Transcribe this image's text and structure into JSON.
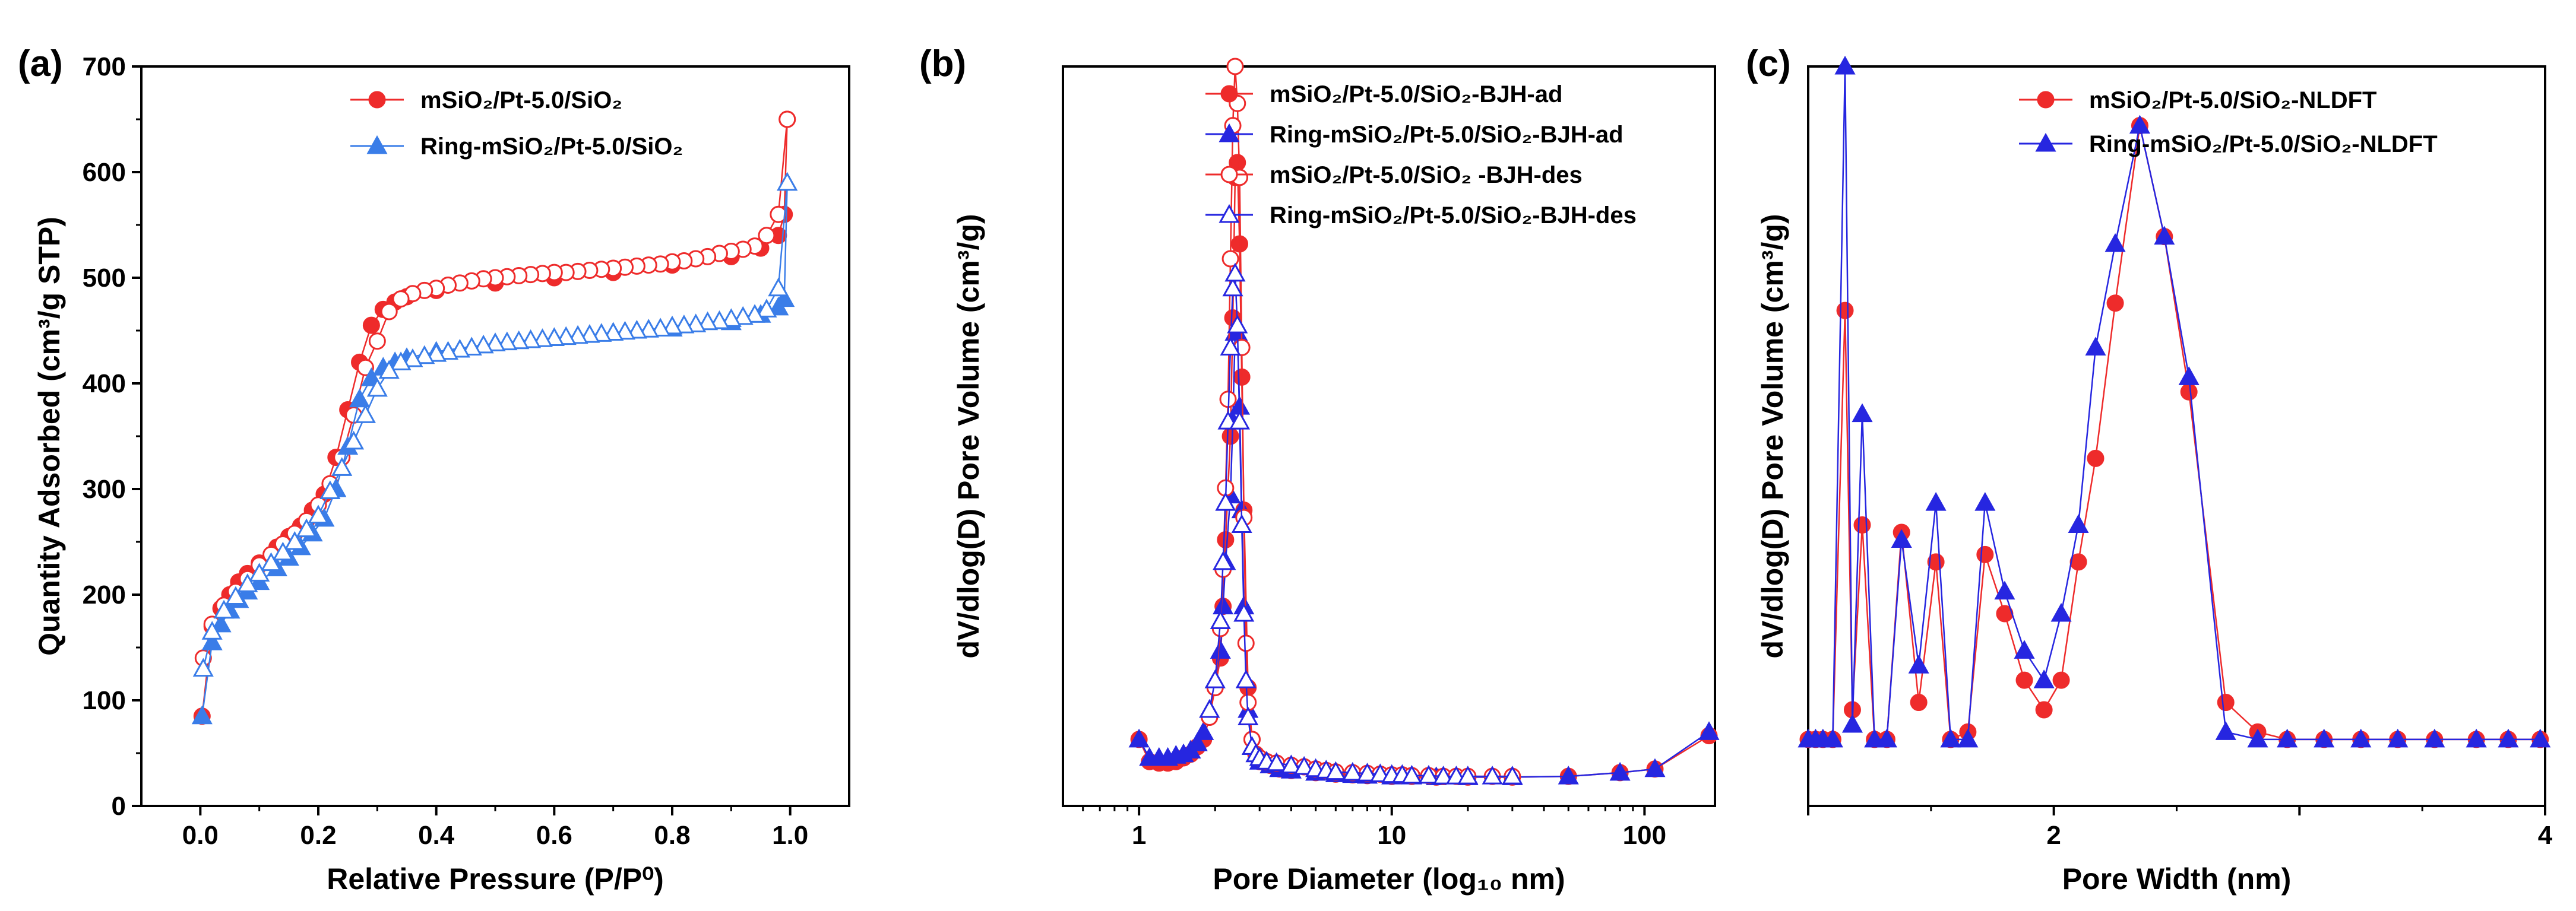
{
  "figure": {
    "background": "#ffffff"
  },
  "colors": {
    "red": "#ee2b2b",
    "blue": "#2626e0",
    "blue_light": "#3a7de8"
  },
  "chart_data": [
    {
      "id": "a",
      "panel_label": "(a)",
      "type": "scatter",
      "xlabel": "Relative Pressure (P/P⁰)",
      "ylabel": "Quantity Adsorbed (cm³/g STP)",
      "xlim": [
        -0.1,
        1.1
      ],
      "ylim": [
        0,
        700
      ],
      "xticks": [
        0.0,
        0.2,
        0.4,
        0.6,
        0.8,
        1.0
      ],
      "xtick_labels": [
        "0.0",
        "0.2",
        "0.4",
        "0.6",
        "0.8",
        "1.0"
      ],
      "yticks": [
        0,
        100,
        200,
        300,
        400,
        500,
        600,
        700
      ],
      "ytick_labels": [
        "0",
        "100",
        "200",
        "300",
        "400",
        "500",
        "600",
        "700"
      ],
      "legend_position": "top-center",
      "series": [
        {
          "name": "mSiO2/Pt-5.0/SiO2",
          "legend_label": "mSiO₂/Pt-5.0/SiO₂",
          "color": "#ee2b2b",
          "marker": "circle",
          "fill": "filled",
          "x": [
            0.003,
            0.02,
            0.035,
            0.05,
            0.065,
            0.08,
            0.1,
            0.13,
            0.15,
            0.17,
            0.19,
            0.21,
            0.23,
            0.25,
            0.27,
            0.29,
            0.31,
            0.33,
            0.35,
            0.4,
            0.5,
            0.6,
            0.7,
            0.8,
            0.9,
            0.95,
            0.98,
            0.99,
            0.995
          ],
          "y": [
            85,
            170,
            187,
            200,
            212,
            220,
            230,
            245,
            255,
            265,
            280,
            295,
            330,
            375,
            420,
            455,
            470,
            477,
            482,
            488,
            495,
            500,
            505,
            512,
            520,
            528,
            540,
            560,
            650
          ]
        },
        {
          "name": "mSiO2/Pt-5.0/SiO2 (desorption)",
          "color": "#ee2b2b",
          "marker": "circle",
          "fill": "hollow",
          "x": [
            0.995,
            0.98,
            0.96,
            0.94,
            0.92,
            0.9,
            0.88,
            0.86,
            0.84,
            0.82,
            0.8,
            0.78,
            0.76,
            0.74,
            0.72,
            0.7,
            0.68,
            0.66,
            0.64,
            0.62,
            0.6,
            0.58,
            0.56,
            0.54,
            0.52,
            0.5,
            0.48,
            0.46,
            0.44,
            0.42,
            0.4,
            0.38,
            0.36,
            0.34,
            0.32,
            0.3,
            0.28,
            0.26,
            0.24,
            0.22,
            0.2,
            0.18,
            0.16,
            0.14,
            0.12,
            0.1,
            0.08,
            0.06,
            0.04,
            0.02,
            0.005
          ],
          "y": [
            650,
            560,
            540,
            530,
            527,
            525,
            523,
            520,
            518,
            516,
            515,
            513,
            512,
            511,
            510,
            509,
            508,
            507,
            506,
            505,
            505,
            504,
            503,
            502,
            501,
            500,
            499,
            497,
            495,
            493,
            490,
            488,
            485,
            480,
            468,
            440,
            415,
            370,
            330,
            305,
            285,
            270,
            258,
            248,
            238,
            228,
            215,
            203,
            190,
            172,
            140
          ]
        },
        {
          "name": "Ring-mSiO2/Pt-5.0/SiO2",
          "legend_label": "Ring-mSiO₂/Pt-5.0/SiO₂",
          "color": "#3a7de8",
          "marker": "triangle",
          "fill": "filled",
          "x": [
            0.003,
            0.02,
            0.035,
            0.05,
            0.065,
            0.08,
            0.1,
            0.13,
            0.15,
            0.17,
            0.19,
            0.21,
            0.23,
            0.25,
            0.27,
            0.29,
            0.31,
            0.33,
            0.35,
            0.4,
            0.5,
            0.6,
            0.7,
            0.8,
            0.9,
            0.95,
            0.98,
            0.99,
            0.995
          ],
          "y": [
            85,
            155,
            172,
            185,
            195,
            203,
            212,
            225,
            235,
            245,
            258,
            272,
            300,
            340,
            385,
            405,
            415,
            420,
            424,
            430,
            438,
            443,
            448,
            452,
            458,
            465,
            472,
            480,
            590
          ]
        },
        {
          "name": "Ring-mSiO2/Pt-5.0/SiO2 (desorption)",
          "color": "#3a7de8",
          "marker": "triangle",
          "fill": "hollow",
          "x": [
            0.995,
            0.98,
            0.96,
            0.94,
            0.92,
            0.9,
            0.88,
            0.86,
            0.84,
            0.82,
            0.8,
            0.78,
            0.76,
            0.74,
            0.72,
            0.7,
            0.68,
            0.66,
            0.64,
            0.62,
            0.6,
            0.58,
            0.56,
            0.54,
            0.52,
            0.5,
            0.48,
            0.46,
            0.44,
            0.42,
            0.4,
            0.38,
            0.36,
            0.34,
            0.32,
            0.3,
            0.28,
            0.26,
            0.24,
            0.22,
            0.2,
            0.18,
            0.16,
            0.14,
            0.12,
            0.1,
            0.08,
            0.06,
            0.04,
            0.02,
            0.005
          ],
          "y": [
            590,
            490,
            470,
            465,
            463,
            461,
            459,
            458,
            456,
            455,
            454,
            452,
            451,
            450,
            449,
            448,
            447,
            446,
            445,
            444,
            443,
            442,
            441,
            440,
            439,
            438,
            436,
            434,
            432,
            430,
            428,
            426,
            423,
            420,
            412,
            395,
            370,
            345,
            320,
            298,
            275,
            262,
            250,
            240,
            230,
            220,
            210,
            198,
            185,
            165,
            130
          ]
        }
      ]
    },
    {
      "id": "b",
      "panel_label": "(b)",
      "type": "line",
      "xscale": "log",
      "xlabel": "Pore Diameter (log₁₀ nm)",
      "ylabel": "dV/dlog(D) Pore Volume (cm³/g)",
      "xlim": [
        0.5,
        190
      ],
      "ylim": [
        0,
        1
      ],
      "xticks": [
        1,
        10,
        100
      ],
      "xtick_labels": [
        "1",
        "10",
        "100"
      ],
      "yticks": [],
      "legend_position": "top-right",
      "series": [
        {
          "name": "mSiO2/Pt-5.0/SiO2-BJH-ad",
          "legend_label": "mSiO₂/Pt-5.0/SiO₂-BJH-ad",
          "color": "#ee2b2b",
          "marker": "circle",
          "fill": "filled",
          "x": [
            1.0,
            1.1,
            1.2,
            1.3,
            1.4,
            1.5,
            1.6,
            1.7,
            1.8,
            1.9,
            2.0,
            2.1,
            2.15,
            2.2,
            2.3,
            2.35,
            2.4,
            2.45,
            2.5,
            2.55,
            2.6,
            2.7,
            2.8,
            3.0,
            3.3,
            3.6,
            4,
            5,
            6,
            7,
            8,
            10,
            12,
            15,
            20,
            30,
            50,
            80,
            110,
            180
          ],
          "y": [
            0.09,
            0.06,
            0.058,
            0.058,
            0.06,
            0.065,
            0.07,
            0.08,
            0.09,
            0.12,
            0.16,
            0.2,
            0.27,
            0.36,
            0.5,
            0.66,
            0.85,
            0.87,
            0.76,
            0.58,
            0.4,
            0.16,
            0.09,
            0.06,
            0.055,
            0.05,
            0.048,
            0.045,
            0.043,
            0.042,
            0.041,
            0.04,
            0.04,
            0.039,
            0.039,
            0.039,
            0.04,
            0.045,
            0.05,
            0.095
          ]
        },
        {
          "name": "Ring-mSiO2/Pt-5.0/SiO2-BJH-ad",
          "legend_label": "Ring-mSiO₂/Pt-5.0/SiO₂-BJH-ad",
          "color": "#2626e0",
          "marker": "triangle",
          "fill": "filled",
          "x": [
            1.0,
            1.1,
            1.2,
            1.3,
            1.4,
            1.5,
            1.6,
            1.7,
            1.8,
            1.9,
            2.0,
            2.1,
            2.15,
            2.2,
            2.3,
            2.35,
            2.4,
            2.45,
            2.5,
            2.55,
            2.6,
            2.7,
            2.8,
            3.0,
            3.3,
            3.6,
            4,
            5,
            6,
            7,
            8,
            10,
            12,
            15,
            20,
            30,
            50,
            80,
            110,
            180
          ],
          "y": [
            0.09,
            0.065,
            0.065,
            0.065,
            0.068,
            0.07,
            0.075,
            0.085,
            0.1,
            0.13,
            0.17,
            0.21,
            0.27,
            0.33,
            0.42,
            0.52,
            0.64,
            0.64,
            0.54,
            0.4,
            0.27,
            0.13,
            0.08,
            0.06,
            0.055,
            0.05,
            0.048,
            0.045,
            0.043,
            0.042,
            0.041,
            0.04,
            0.04,
            0.039,
            0.039,
            0.039,
            0.04,
            0.045,
            0.05,
            0.1
          ]
        },
        {
          "name": "mSiO2/Pt-5.0/SiO2 -BJH-des",
          "legend_label": "mSiO₂/Pt-5.0/SiO₂ -BJH-des",
          "color": "#ee2b2b",
          "marker": "circle",
          "fill": "hollow",
          "x": [
            1.9,
            2.0,
            2.1,
            2.15,
            2.2,
            2.25,
            2.3,
            2.35,
            2.4,
            2.45,
            2.5,
            2.55,
            2.6,
            2.65,
            2.7,
            2.8,
            2.9,
            3.0,
            3.2,
            3.5,
            4,
            4.5,
            5,
            5.5,
            6,
            7,
            8,
            9,
            10,
            11,
            12,
            14,
            16,
            18,
            20,
            25,
            30
          ],
          "y": [
            0.12,
            0.16,
            0.24,
            0.32,
            0.43,
            0.55,
            0.74,
            0.92,
            1.0,
            0.95,
            0.85,
            0.62,
            0.39,
            0.22,
            0.14,
            0.09,
            0.07,
            0.065,
            0.06,
            0.058,
            0.055,
            0.053,
            0.05,
            0.048,
            0.046,
            0.045,
            0.044,
            0.043,
            0.042,
            0.042,
            0.041,
            0.041,
            0.04,
            0.04,
            0.04,
            0.04,
            0.04
          ]
        },
        {
          "name": "Ring-mSiO2/Pt-5.0/SiO2-BJH-des",
          "legend_label": "Ring-mSiO₂/Pt-5.0/SiO₂-BJH-des",
          "color": "#2626e0",
          "marker": "triangle",
          "fill": "hollow",
          "x": [
            1.9,
            2.0,
            2.1,
            2.15,
            2.2,
            2.25,
            2.3,
            2.35,
            2.4,
            2.45,
            2.5,
            2.55,
            2.6,
            2.65,
            2.7,
            2.8,
            2.9,
            3.0,
            3.2,
            3.5,
            4,
            4.5,
            5,
            5.5,
            6,
            7,
            8,
            9,
            10,
            11,
            12,
            14,
            16,
            18,
            20,
            25,
            30
          ],
          "y": [
            0.13,
            0.17,
            0.25,
            0.33,
            0.41,
            0.52,
            0.62,
            0.7,
            0.72,
            0.65,
            0.52,
            0.38,
            0.26,
            0.17,
            0.12,
            0.08,
            0.07,
            0.065,
            0.06,
            0.058,
            0.055,
            0.053,
            0.05,
            0.048,
            0.046,
            0.045,
            0.044,
            0.043,
            0.042,
            0.042,
            0.041,
            0.041,
            0.04,
            0.04,
            0.04,
            0.04,
            0.04
          ]
        }
      ]
    },
    {
      "id": "c",
      "panel_label": "(c)",
      "type": "line",
      "xlabel": "Pore Width (nm)",
      "ylabel": "dV/dlog(D) Pore Volume (cm³/g)",
      "xlim": [
        1.0,
        4.0
      ],
      "ylim": [
        0,
        1
      ],
      "xticks": [
        1,
        2,
        3,
        4
      ],
      "xtick_labels": [
        "",
        "2",
        "",
        "4"
      ],
      "yticks": [],
      "legend_position": "top-right",
      "series": [
        {
          "name": "mSiO2/Pt-5.0/SiO2-NLDFT",
          "legend_label": "mSiO₂/Pt-5.0/SiO₂-NLDFT",
          "color": "#ee2b2b",
          "marker": "circle",
          "fill": "filled",
          "x": [
            1.0,
            1.03,
            1.06,
            1.1,
            1.15,
            1.18,
            1.22,
            1.27,
            1.32,
            1.38,
            1.45,
            1.52,
            1.58,
            1.65,
            1.72,
            1.8,
            1.88,
            1.96,
            2.03,
            2.1,
            2.17,
            2.25,
            2.35,
            2.45,
            2.55,
            2.7,
            2.83,
            2.95,
            3.1,
            3.25,
            3.4,
            3.55,
            3.72,
            3.85,
            3.98
          ],
          "y": [
            0.09,
            0.09,
            0.09,
            0.09,
            0.67,
            0.13,
            0.38,
            0.09,
            0.09,
            0.37,
            0.14,
            0.33,
            0.09,
            0.1,
            0.34,
            0.26,
            0.17,
            0.13,
            0.17,
            0.33,
            0.47,
            0.68,
            0.92,
            0.77,
            0.56,
            0.14,
            0.1,
            0.09,
            0.09,
            0.09,
            0.09,
            0.09,
            0.09,
            0.09,
            0.09
          ]
        },
        {
          "name": "Ring-mSiO2/Pt-5.0/SiO2-NLDFT",
          "legend_label": "Ring-mSiO₂/Pt-5.0/SiO₂-NLDFT",
          "color": "#2626e0",
          "marker": "triangle",
          "fill": "filled",
          "x": [
            1.0,
            1.03,
            1.06,
            1.1,
            1.15,
            1.18,
            1.22,
            1.27,
            1.32,
            1.38,
            1.45,
            1.52,
            1.58,
            1.65,
            1.72,
            1.8,
            1.88,
            1.96,
            2.03,
            2.1,
            2.17,
            2.25,
            2.35,
            2.45,
            2.55,
            2.7,
            2.83,
            2.95,
            3.1,
            3.25,
            3.4,
            3.55,
            3.72,
            3.85,
            3.98
          ],
          "y": [
            0.09,
            0.09,
            0.09,
            0.09,
            1.0,
            0.11,
            0.53,
            0.09,
            0.09,
            0.36,
            0.19,
            0.41,
            0.09,
            0.09,
            0.41,
            0.29,
            0.21,
            0.17,
            0.26,
            0.38,
            0.62,
            0.76,
            0.92,
            0.77,
            0.58,
            0.1,
            0.09,
            0.09,
            0.09,
            0.09,
            0.09,
            0.09,
            0.09,
            0.09,
            0.09
          ]
        }
      ]
    }
  ]
}
